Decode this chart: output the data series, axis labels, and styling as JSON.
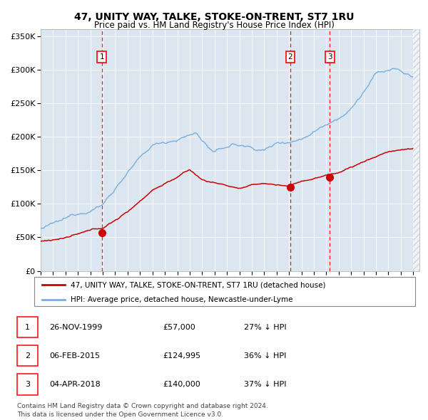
{
  "title": "47, UNITY WAY, TALKE, STOKE-ON-TRENT, ST7 1RU",
  "subtitle": "Price paid vs. HM Land Registry's House Price Index (HPI)",
  "hpi_color": "#7aaddc",
  "price_color": "#cc0000",
  "bg_color": "#dce6f1",
  "grid_color": "#ffffff",
  "sale1_date": 1999.92,
  "sale1_price": 57000,
  "sale2_date": 2015.1,
  "sale2_price": 124995,
  "sale3_date": 2018.27,
  "sale3_price": 140000,
  "legend_property": "47, UNITY WAY, TALKE, STOKE-ON-TRENT, ST7 1RU (detached house)",
  "legend_hpi": "HPI: Average price, detached house, Newcastle-under-Lyme",
  "table_rows": [
    [
      "1",
      "26-NOV-1999",
      "£57,000",
      "27% ↓ HPI"
    ],
    [
      "2",
      "06-FEB-2015",
      "£124,995",
      "36% ↓ HPI"
    ],
    [
      "3",
      "04-APR-2018",
      "£140,000",
      "37% ↓ HPI"
    ]
  ],
  "footer": "Contains HM Land Registry data © Crown copyright and database right 2024.\nThis data is licensed under the Open Government Licence v3.0.",
  "ylim": [
    0,
    360000
  ],
  "yticks": [
    0,
    50000,
    100000,
    150000,
    200000,
    250000,
    300000,
    350000
  ],
  "xmin": 1995.0,
  "xmax": 2025.5
}
